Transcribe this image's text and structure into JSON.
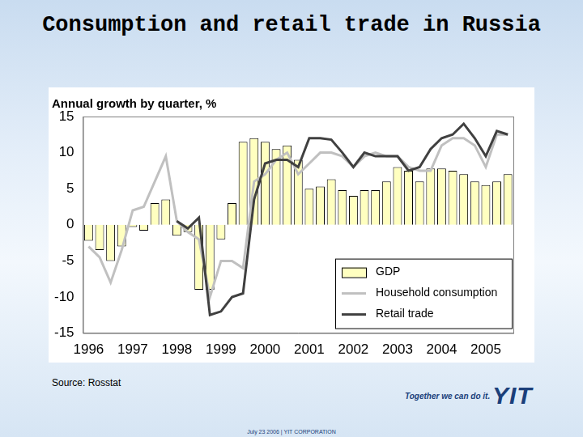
{
  "chart_data": {
    "type": "bar",
    "title": "Consumption and retail trade in Russia",
    "subtitle": "Annual growth by quarter, %",
    "categories": [
      "1996",
      null,
      null,
      null,
      "1997",
      null,
      null,
      null,
      "1998",
      null,
      null,
      null,
      "1999",
      null,
      null,
      null,
      "2000",
      null,
      null,
      null,
      "2001",
      null,
      null,
      null,
      "2002",
      null,
      null,
      null,
      "2003",
      null,
      null,
      null,
      "2004",
      null,
      null,
      null,
      "2005",
      null,
      null
    ],
    "series": [
      {
        "name": "GDP",
        "type": "bar",
        "color": "#ffffc0",
        "values": [
          -2.2,
          -3.5,
          -5,
          -3,
          -0.3,
          -0.8,
          3,
          3.5,
          -1.5,
          -1,
          -9,
          -9,
          -2,
          3,
          11.5,
          12,
          11.5,
          10.5,
          11,
          9,
          5,
          5.3,
          6.3,
          4.8,
          4,
          4.8,
          4.8,
          6,
          8,
          7.5,
          6,
          7.8,
          7.8,
          7.5,
          7,
          6,
          5.5,
          6,
          7
        ]
      },
      {
        "name": "Household consumption",
        "type": "line",
        "color": "#c0c0c0",
        "values": [
          -3,
          -4.5,
          -8,
          -3.5,
          2,
          2.5,
          6,
          9.5,
          0.5,
          -1,
          -2,
          -10,
          -5,
          -5,
          -6,
          6,
          7,
          9,
          10,
          7,
          8.5,
          10,
          10,
          9.5,
          8,
          9.5,
          10,
          9.5,
          9.5,
          8,
          7.5,
          7.5,
          11,
          12,
          12,
          11,
          8,
          12.5,
          12.5
        ]
      },
      {
        "name": "Retail trade",
        "type": "line",
        "color": "#404040",
        "values": [
          null,
          null,
          null,
          null,
          null,
          null,
          null,
          null,
          0.5,
          -0.5,
          1,
          -12.5,
          -12,
          -10,
          -9.5,
          3.5,
          8.5,
          9,
          9,
          8,
          12,
          12,
          11.8,
          10,
          8,
          10,
          9.5,
          9.5,
          9.5,
          7.5,
          8,
          10.5,
          12,
          12.5,
          14,
          12,
          9.5,
          13,
          12.5
        ]
      }
    ],
    "ylim": [
      -15,
      15
    ],
    "yticks": [
      -15,
      -10,
      -5,
      0,
      5,
      10,
      15
    ],
    "grid": false,
    "legend": "lower right"
  },
  "page": {
    "source": "Source: Rosstat",
    "slogan": "Together we can do it.",
    "logo": "YIT",
    "footer": "July 23 2006 | YIT CORPORATION"
  }
}
